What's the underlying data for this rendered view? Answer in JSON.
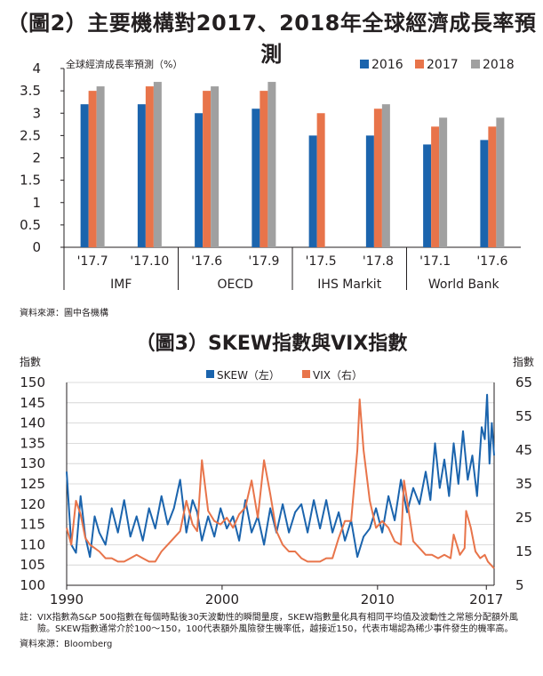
{
  "chart_data": [
    {
      "type": "bar",
      "title": "（圖2）主要機構對2017、2018年全球經濟成長率預測",
      "ylabel": "全球經濟成長率預測（%）",
      "ylim": [
        0,
        4
      ],
      "yticks": [
        "0",
        "0.5",
        "1",
        "1.5",
        "2",
        "2.5",
        "3",
        "3.5",
        "4"
      ],
      "grid": false,
      "legend_position": "top-right",
      "categories": [
        "'17.7",
        "'17.10",
        "'17.6",
        "'17.9",
        "'17.5",
        "'17.8",
        "'17.1",
        "'17.6"
      ],
      "groups": [
        {
          "label": "IMF",
          "span": [
            0,
            1
          ]
        },
        {
          "label": "OECD",
          "span": [
            2,
            3
          ]
        },
        {
          "label": "IHS Markit",
          "span": [
            4,
            5
          ]
        },
        {
          "label": "World Bank",
          "span": [
            6,
            7
          ]
        }
      ],
      "series": [
        {
          "name": "2016",
          "color": "#1b64ad",
          "values": [
            3.2,
            3.2,
            3.0,
            3.1,
            2.5,
            2.5,
            2.3,
            2.4
          ]
        },
        {
          "name": "2017",
          "color": "#e8744a",
          "values": [
            3.5,
            3.6,
            3.5,
            3.5,
            3.0,
            3.1,
            2.7,
            2.7
          ]
        },
        {
          "name": "2018",
          "color": "#a0a0a0",
          "values": [
            3.6,
            3.7,
            3.6,
            3.7,
            null,
            3.2,
            2.9,
            2.9
          ]
        }
      ],
      "source": "資料來源：圖中各機構"
    },
    {
      "type": "line",
      "title": "（圖3）SKEW指數與VIX指數",
      "left_axis_label": "指數",
      "right_axis_label": "指數",
      "ylim_left": [
        100,
        150
      ],
      "yticks_left": [
        "100",
        "105",
        "110",
        "115",
        "120",
        "125",
        "130",
        "135",
        "140",
        "145",
        "150"
      ],
      "ylim_right": [
        5,
        65
      ],
      "yticks_right": [
        "5",
        "15",
        "25",
        "35",
        "45",
        "55",
        "65"
      ],
      "xlim": [
        1990,
        2017.5
      ],
      "xticks": [
        "1990",
        "2000",
        "2010",
        "2017"
      ],
      "grid": "horizontal",
      "legend_position": "top-center",
      "series": [
        {
          "name": "SKEW（左）",
          "axis": "left",
          "color": "#1b64ad",
          "points": [
            [
              1990.0,
              128
            ],
            [
              1990.3,
              110
            ],
            [
              1990.6,
              108
            ],
            [
              1990.9,
              122
            ],
            [
              1991.2,
              112
            ],
            [
              1991.5,
              107
            ],
            [
              1991.8,
              117
            ],
            [
              1992.1,
              113
            ],
            [
              1992.5,
              110
            ],
            [
              1992.9,
              119
            ],
            [
              1993.3,
              113
            ],
            [
              1993.7,
              121
            ],
            [
              1994.1,
              112
            ],
            [
              1994.5,
              117
            ],
            [
              1994.9,
              111
            ],
            [
              1995.3,
              119
            ],
            [
              1995.7,
              114
            ],
            [
              1996.1,
              122
            ],
            [
              1996.5,
              115
            ],
            [
              1996.9,
              119
            ],
            [
              1997.3,
              126
            ],
            [
              1997.7,
              113
            ],
            [
              1998.1,
              121
            ],
            [
              1998.4,
              118
            ],
            [
              1998.7,
              111
            ],
            [
              1999.1,
              117
            ],
            [
              1999.5,
              112
            ],
            [
              1999.9,
              119
            ],
            [
              2000.3,
              114
            ],
            [
              2000.7,
              117
            ],
            [
              2001.1,
              111
            ],
            [
              2001.5,
              121
            ],
            [
              2001.9,
              113
            ],
            [
              2002.3,
              117
            ],
            [
              2002.7,
              110
            ],
            [
              2003.1,
              119
            ],
            [
              2003.5,
              113
            ],
            [
              2003.9,
              120
            ],
            [
              2004.3,
              113
            ],
            [
              2004.7,
              118
            ],
            [
              2005.1,
              120
            ],
            [
              2005.5,
              113
            ],
            [
              2005.9,
              121
            ],
            [
              2006.3,
              114
            ],
            [
              2006.7,
              121
            ],
            [
              2007.1,
              113
            ],
            [
              2007.5,
              118
            ],
            [
              2007.9,
              111
            ],
            [
              2008.3,
              116
            ],
            [
              2008.7,
              107
            ],
            [
              2009.1,
              112
            ],
            [
              2009.5,
              114
            ],
            [
              2009.9,
              119
            ],
            [
              2010.3,
              113
            ],
            [
              2010.7,
              122
            ],
            [
              2011.1,
              116
            ],
            [
              2011.5,
              126
            ],
            [
              2011.9,
              118
            ],
            [
              2012.3,
              124
            ],
            [
              2012.7,
              120
            ],
            [
              2013.1,
              128
            ],
            [
              2013.4,
              121
            ],
            [
              2013.7,
              135
            ],
            [
              2014.0,
              124
            ],
            [
              2014.3,
              131
            ],
            [
              2014.6,
              122
            ],
            [
              2014.9,
              135
            ],
            [
              2015.2,
              125
            ],
            [
              2015.5,
              138
            ],
            [
              2015.8,
              126
            ],
            [
              2016.1,
              132
            ],
            [
              2016.4,
              122
            ],
            [
              2016.7,
              139
            ],
            [
              2016.9,
              136
            ],
            [
              2017.05,
              147
            ],
            [
              2017.2,
              130
            ],
            [
              2017.35,
              140
            ],
            [
              2017.5,
              132
            ]
          ]
        },
        {
          "name": "VIX（右）",
          "axis": "right",
          "color": "#e8744a",
          "points": [
            [
              1990.0,
              22
            ],
            [
              1990.3,
              17
            ],
            [
              1990.6,
              30
            ],
            [
              1990.9,
              26
            ],
            [
              1991.2,
              19
            ],
            [
              1991.5,
              17
            ],
            [
              1991.8,
              16
            ],
            [
              1992.1,
              15
            ],
            [
              1992.5,
              13
            ],
            [
              1992.9,
              13
            ],
            [
              1993.3,
              12
            ],
            [
              1993.7,
              12
            ],
            [
              1994.1,
              13
            ],
            [
              1994.5,
              14
            ],
            [
              1994.9,
              13
            ],
            [
              1995.3,
              12
            ],
            [
              1995.7,
              12
            ],
            [
              1996.1,
              15
            ],
            [
              1996.5,
              17
            ],
            [
              1996.9,
              19
            ],
            [
              1997.3,
              21
            ],
            [
              1997.7,
              30
            ],
            [
              1998.1,
              23
            ],
            [
              1998.4,
              21
            ],
            [
              1998.7,
              42
            ],
            [
              1999.1,
              27
            ],
            [
              1999.5,
              24
            ],
            [
              1999.9,
              23
            ],
            [
              2000.3,
              25
            ],
            [
              2000.7,
              22
            ],
            [
              2001.1,
              26
            ],
            [
              2001.5,
              28
            ],
            [
              2001.9,
              36
            ],
            [
              2002.3,
              25
            ],
            [
              2002.7,
              42
            ],
            [
              2003.1,
              32
            ],
            [
              2003.5,
              21
            ],
            [
              2003.9,
              17
            ],
            [
              2004.3,
              15
            ],
            [
              2004.7,
              15
            ],
            [
              2005.1,
              13
            ],
            [
              2005.5,
              12
            ],
            [
              2005.9,
              12
            ],
            [
              2006.3,
              12
            ],
            [
              2006.7,
              13
            ],
            [
              2007.1,
              13
            ],
            [
              2007.5,
              19
            ],
            [
              2007.9,
              24
            ],
            [
              2008.3,
              24
            ],
            [
              2008.7,
              45
            ],
            [
              2008.85,
              60
            ],
            [
              2009.1,
              45
            ],
            [
              2009.5,
              30
            ],
            [
              2009.9,
              22
            ],
            [
              2010.3,
              24
            ],
            [
              2010.7,
              22
            ],
            [
              2011.1,
              18
            ],
            [
              2011.5,
              17
            ],
            [
              2011.7,
              36
            ],
            [
              2011.9,
              30
            ],
            [
              2012.3,
              18
            ],
            [
              2012.7,
              16
            ],
            [
              2013.1,
              14
            ],
            [
              2013.5,
              14
            ],
            [
              2013.9,
              13
            ],
            [
              2014.3,
              14
            ],
            [
              2014.7,
              13
            ],
            [
              2014.9,
              20
            ],
            [
              2015.3,
              14
            ],
            [
              2015.6,
              16
            ],
            [
              2015.7,
              27
            ],
            [
              2016.0,
              22
            ],
            [
              2016.3,
              15
            ],
            [
              2016.6,
              13
            ],
            [
              2016.9,
              14
            ],
            [
              2017.1,
              12
            ],
            [
              2017.3,
              11
            ],
            [
              2017.5,
              10
            ]
          ]
        }
      ]
    }
  ],
  "notes": {
    "line1_lead": "註：",
    "line1_text": "VIX指數為S&P 500指數在每個時點後30天波動性的瞬間量度，SKEW指數量化具有相同平均值及波動性之常態分配額外風險。SKEW指數通常介於100～150，100代表額外風險發生機率低，越接近150，代表市場認為稀少事件發生的機率高。",
    "source2": "資料來源：Bloomberg"
  }
}
